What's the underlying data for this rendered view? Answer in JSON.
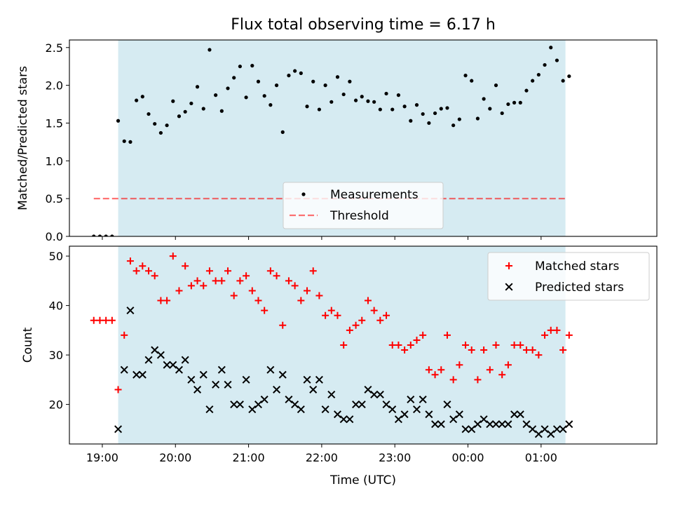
{
  "figure": {
    "title": "Flux total observing time = 6.17 h",
    "xlabel": "Time (UTC)"
  },
  "colors": {
    "shade": "#add8e6",
    "measurement": "#000000",
    "threshold": "#ff0000",
    "matched": "#ff0000",
    "predicted": "#000000"
  },
  "chart_data": [
    {
      "type": "scatter",
      "ylabel": "Matched/Predicted stars",
      "ylim": [
        0,
        2.6
      ],
      "yticks": [
        "0.0",
        "0.5",
        "1.0",
        "1.5",
        "2.0",
        "2.5"
      ],
      "xlim": [
        "18:33",
        "02:35"
      ],
      "xticks": [
        "19:00",
        "20:00",
        "21:00",
        "22:00",
        "23:00",
        "00:00",
        "01:00"
      ],
      "shaded_span": [
        "19:13",
        "01:20"
      ],
      "legend": {
        "position": "lower center",
        "entries": [
          "Measurements",
          "Threshold"
        ]
      },
      "threshold": {
        "name": "Threshold",
        "value": 0.5,
        "x": [
          "18:53",
          "01:20"
        ],
        "style": "dashed"
      },
      "series": [
        {
          "name": "Measurements",
          "x": [
            "18:53",
            "18:58",
            "19:03",
            "19:08",
            "19:13",
            "19:18",
            "19:23",
            "19:28",
            "19:33",
            "19:38",
            "19:43",
            "19:48",
            "19:53",
            "19:58",
            "20:03",
            "20:08",
            "20:13",
            "20:18",
            "20:23",
            "20:28",
            "20:33",
            "20:38",
            "20:43",
            "20:48",
            "20:53",
            "20:58",
            "21:03",
            "21:08",
            "21:13",
            "21:18",
            "21:23",
            "21:28",
            "21:33",
            "21:38",
            "21:43",
            "21:48",
            "21:53",
            "21:58",
            "22:03",
            "22:08",
            "22:13",
            "22:18",
            "22:23",
            "22:28",
            "22:33",
            "22:38",
            "22:43",
            "22:48",
            "22:53",
            "22:58",
            "23:03",
            "23:08",
            "23:13",
            "23:18",
            "23:23",
            "23:28",
            "23:33",
            "23:38",
            "23:43",
            "23:48",
            "23:53",
            "23:58",
            "00:03",
            "00:08",
            "00:13",
            "00:18",
            "00:23",
            "00:28",
            "00:33",
            "00:38",
            "00:43",
            "00:48",
            "00:53",
            "00:58",
            "01:03",
            "01:08",
            "01:13",
            "01:18",
            "01:23"
          ],
          "y": [
            0,
            0,
            0,
            0,
            1.53,
            1.26,
            1.25,
            1.8,
            1.85,
            1.62,
            1.49,
            1.37,
            1.47,
            1.79,
            1.59,
            1.65,
            1.76,
            1.98,
            1.69,
            2.47,
            1.87,
            1.66,
            1.96,
            2.1,
            2.25,
            1.84,
            2.26,
            2.05,
            1.86,
            1.74,
            2.0,
            1.38,
            2.13,
            2.19,
            2.16,
            1.72,
            2.05,
            1.68,
            2.0,
            1.78,
            2.11,
            1.88,
            2.05,
            1.8,
            1.85,
            1.79,
            1.78,
            1.68,
            1.89,
            1.68,
            1.87,
            1.72,
            1.53,
            1.74,
            1.62,
            1.5,
            1.63,
            1.69,
            1.7,
            1.47,
            1.55,
            2.13,
            2.06,
            1.56,
            1.82,
            1.69,
            2.0,
            1.63,
            1.75,
            1.77,
            1.77,
            1.93,
            2.06,
            2.14,
            2.27,
            2.5,
            2.33,
            2.06,
            2.12
          ]
        }
      ]
    },
    {
      "type": "scatter",
      "ylabel": "Count",
      "ylim": [
        12,
        52
      ],
      "yticks": [
        "20",
        "30",
        "40",
        "50"
      ],
      "xlim": [
        "18:33",
        "02:35"
      ],
      "xticks": [
        "19:00",
        "20:00",
        "21:00",
        "22:00",
        "23:00",
        "00:00",
        "01:00"
      ],
      "shaded_span": [
        "19:13",
        "01:20"
      ],
      "legend": {
        "position": "upper right",
        "entries": [
          "Matched stars",
          "Predicted stars"
        ]
      },
      "series": [
        {
          "name": "Matched stars",
          "x": [
            "18:53",
            "18:58",
            "19:03",
            "19:08",
            "19:13",
            "19:18",
            "19:23",
            "19:28",
            "19:33",
            "19:38",
            "19:43",
            "19:48",
            "19:53",
            "19:58",
            "20:03",
            "20:08",
            "20:13",
            "20:18",
            "20:23",
            "20:28",
            "20:33",
            "20:38",
            "20:43",
            "20:48",
            "20:53",
            "20:58",
            "21:03",
            "21:08",
            "21:13",
            "21:18",
            "21:23",
            "21:28",
            "21:33",
            "21:38",
            "21:43",
            "21:48",
            "21:53",
            "21:58",
            "22:03",
            "22:08",
            "22:13",
            "22:18",
            "22:23",
            "22:28",
            "22:33",
            "22:38",
            "22:43",
            "22:48",
            "22:53",
            "22:58",
            "23:03",
            "23:08",
            "23:13",
            "23:18",
            "23:23",
            "23:28",
            "23:33",
            "23:38",
            "23:43",
            "23:48",
            "23:53",
            "23:58",
            "00:03",
            "00:08",
            "00:13",
            "00:18",
            "00:23",
            "00:28",
            "00:33",
            "00:38",
            "00:43",
            "00:48",
            "00:53",
            "00:58",
            "01:03",
            "01:08",
            "01:13",
            "01:18",
            "01:23"
          ],
          "y": [
            37,
            37,
            37,
            37,
            23,
            34,
            49,
            47,
            48,
            47,
            46,
            41,
            41,
            50,
            43,
            48,
            44,
            45,
            44,
            47,
            45,
            45,
            47,
            42,
            45,
            46,
            43,
            41,
            39,
            47,
            46,
            36,
            45,
            44,
            41,
            43,
            47,
            42,
            38,
            39,
            38,
            32,
            35,
            36,
            37,
            41,
            39,
            37,
            38,
            32,
            32,
            31,
            32,
            33,
            34,
            27,
            26,
            27,
            34,
            25,
            28,
            32,
            31,
            25,
            31,
            27,
            32,
            26,
            28,
            32,
            32,
            31,
            31,
            30,
            34,
            35,
            35,
            31,
            34
          ]
        },
        {
          "name": "Predicted stars",
          "x": [
            "19:13",
            "19:18",
            "19:23",
            "19:28",
            "19:33",
            "19:38",
            "19:43",
            "19:48",
            "19:53",
            "19:58",
            "20:03",
            "20:08",
            "20:13",
            "20:18",
            "20:23",
            "20:28",
            "20:33",
            "20:38",
            "20:43",
            "20:48",
            "20:53",
            "20:58",
            "21:03",
            "21:08",
            "21:13",
            "21:18",
            "21:23",
            "21:28",
            "21:33",
            "21:38",
            "21:43",
            "21:48",
            "21:53",
            "21:58",
            "22:03",
            "22:08",
            "22:13",
            "22:18",
            "22:23",
            "22:28",
            "22:33",
            "22:38",
            "22:43",
            "22:48",
            "22:53",
            "22:58",
            "23:03",
            "23:08",
            "23:13",
            "23:18",
            "23:23",
            "23:28",
            "23:33",
            "23:38",
            "23:43",
            "23:48",
            "23:53",
            "23:58",
            "00:03",
            "00:08",
            "00:13",
            "00:18",
            "00:23",
            "00:28",
            "00:33",
            "00:38",
            "00:43",
            "00:48",
            "00:53",
            "00:58",
            "01:03",
            "01:08",
            "01:13",
            "01:18",
            "01:23"
          ],
          "y": [
            15,
            27,
            39,
            26,
            26,
            29,
            31,
            30,
            28,
            28,
            27,
            29,
            25,
            23,
            26,
            19,
            24,
            27,
            24,
            20,
            20,
            25,
            19,
            20,
            21,
            27,
            23,
            26,
            21,
            20,
            19,
            25,
            23,
            25,
            19,
            22,
            18,
            17,
            17,
            20,
            20,
            23,
            22,
            22,
            20,
            19,
            17,
            18,
            21,
            19,
            21,
            18,
            16,
            16,
            20,
            17,
            18,
            15,
            15,
            16,
            17,
            16,
            16,
            16,
            16,
            18,
            18,
            16,
            15,
            14,
            15,
            14,
            15,
            15,
            16
          ]
        }
      ]
    }
  ]
}
